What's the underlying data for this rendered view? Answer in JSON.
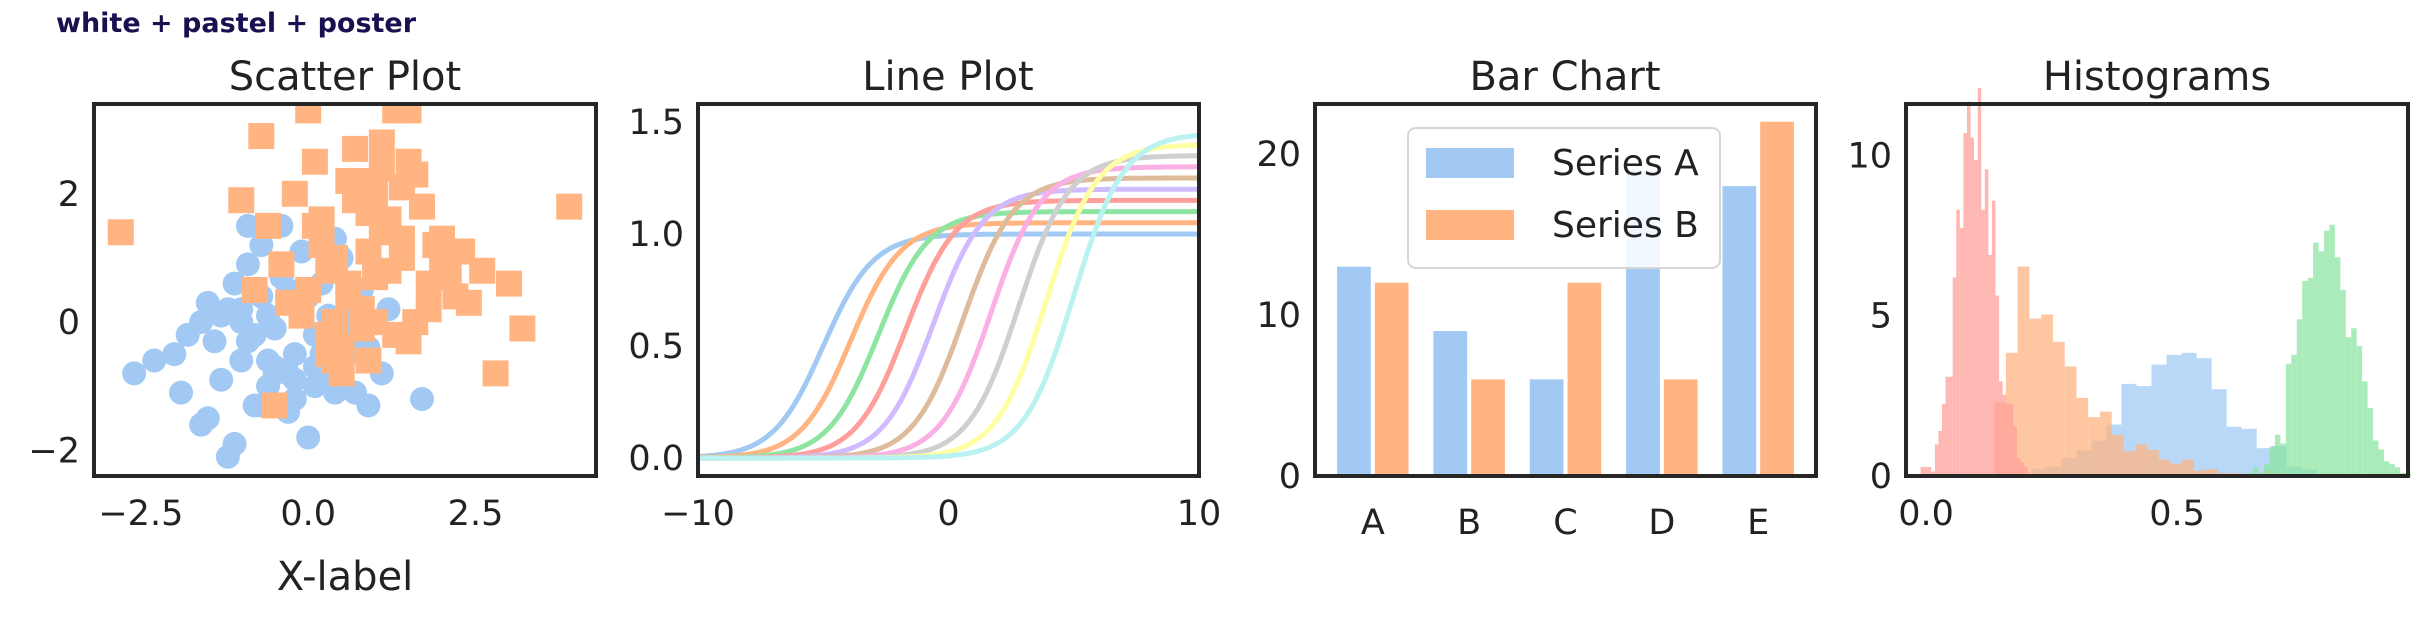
{
  "figure_title": "white + pastel + poster",
  "colors": {
    "blue": "#a1c9f4",
    "orange": "#ffb482",
    "green": "#8de5a1",
    "red": "#ff9f9b",
    "purple": "#d0bbff",
    "brown": "#debb9b",
    "pink": "#fab0e4",
    "gray": "#cfcfcf",
    "yellow": "#fffea3",
    "cyan": "#b9f2f0"
  },
  "chart_data": [
    {
      "type": "scatter",
      "title": "Scatter Plot",
      "xlabel": "X-label",
      "ylabel": "",
      "xlim": [
        -3.2,
        4.3
      ],
      "ylim": [
        -2.4,
        3.4
      ],
      "xticks": [
        "-2.5",
        "0.0",
        "2.5"
      ],
      "xtick_values": [
        -2.5,
        0,
        2.5
      ],
      "yticks": [
        "-2",
        "0",
        "2"
      ],
      "ytick_values": [
        -2,
        0,
        2
      ],
      "series": [
        {
          "marker": "circle",
          "color": "blue",
          "x": [
            -0.9,
            -1.2,
            -0.5,
            -0.3,
            0.1,
            0.4,
            0.8,
            -1.5,
            -1.8,
            -0.7,
            0.2,
            -0.2,
            -1.0,
            0.6,
            0.9,
            -0.4,
            -1.3,
            0.0,
            -0.6,
            0.3,
            1.0,
            -2.0,
            -2.6,
            -1.6,
            -1.1,
            -0.8,
            0.5,
            -0.1,
            0.7,
            1.2,
            -1.4,
            -0.9,
            0.1,
            -0.3,
            -0.7,
            0.4,
            1.7,
            -0.5,
            0.2,
            -1.2,
            -1.9,
            -0.6,
            0.8,
            0.3,
            -0.2,
            -1.0,
            -1.6,
            -0.4,
            1.1,
            0.0,
            -0.8,
            0.6,
            -2.3,
            -1.5,
            -0.9,
            0.1,
            -0.3,
            0.9,
            -0.6,
            -1.1,
            0.4,
            -0.1,
            -1.3,
            0.7,
            -0.5,
            0.2,
            -0.7,
            -1.0,
            0.5,
            -0.2
          ],
          "y": [
            -0.3,
            0.2,
            -0.8,
            0.5,
            -1.0,
            0.0,
            -0.5,
            -1.5,
            -0.2,
            1.2,
            0.6,
            -1.2,
            -0.6,
            0.3,
            -1.3,
            1.5,
            -0.9,
            -1.8,
            0.1,
            -0.4,
            0.8,
            -0.5,
            -0.8,
            0.0,
            -1.9,
            -0.2,
            1.0,
            0.3,
            -1.1,
            0.2,
            -0.3,
            0.9,
            -0.7,
            -1.4,
            0.4,
            1.3,
            -1.2,
            -0.1,
            -0.5,
            -2.1,
            -1.1,
            -0.6,
            0.5,
            0.1,
            -0.9,
            0.0,
            -1.6,
            0.7,
            -0.8,
            0.4,
            -1.3,
            -0.3,
            -0.6,
            0.3,
            1.5,
            -0.2,
            -0.8,
            -0.4,
            -1.0,
            0.6,
            -1.1,
            1.1,
            0.1,
            0.2,
            -0.7,
            -0.9,
            -1.3,
            0.2,
            -0.1,
            -0.5
          ]
        },
        {
          "marker": "square",
          "color": "orange",
          "x": [
            0.0,
            0.4,
            0.8,
            1.2,
            1.5,
            0.2,
            0.6,
            1.0,
            1.4,
            1.8,
            0.3,
            0.7,
            1.1,
            -0.3,
            0.9,
            1.6,
            2.0,
            0.5,
            1.3,
            -0.6,
            2.2,
            0.1,
            0.8,
            1.7,
            1.0,
            0.4,
            -0.2,
            1.9,
            0.6,
            1.2,
            2.4,
            0.0,
            1.5,
            0.9,
            2.8,
            -0.4,
            0.3,
            1.1,
            3.2,
            -0.8,
            1.4,
            0.7,
            2.1,
            -2.8,
            3.9,
            1.5,
            0.2,
            2.6,
            -0.5,
            1.0,
            1.8,
            0.5,
            0.9,
            2.3,
            -1.0,
            0.6,
            1.3,
            -0.7,
            3.0,
            0.1,
            0.8,
            1.6,
            2.0,
            0.3,
            1.1,
            0.4,
            -0.1,
            1.4
          ],
          "y": [
            0.5,
            1.0,
            0.2,
            0.8,
            -0.3,
            1.6,
            2.2,
            0.0,
            1.3,
            0.6,
            -0.5,
            1.9,
            2.8,
            0.3,
            1.1,
            2.3,
            0.9,
            -0.8,
            3.3,
            1.5,
            0.4,
            2.5,
            -0.1,
            1.8,
            0.7,
            0.0,
            2.0,
            1.2,
            0.6,
            1.6,
            0.3,
            3.3,
            2.5,
            -0.6,
            -0.8,
            0.9,
            -0.2,
            1.4,
            -0.1,
            0.5,
            1.0,
            2.7,
            0.7,
            1.4,
            1.8,
            3.3,
            1.2,
            0.8,
            -1.3,
            2.0,
            0.2,
            -0.4,
            1.7,
            1.1,
            1.9,
            0.4,
            -0.2,
            2.9,
            0.6,
            1.5,
            2.2,
            0.0,
            1.3,
            0.8,
            2.4,
            -0.6,
            0.1,
            2.1
          ]
        }
      ]
    },
    {
      "type": "line",
      "title": "Line Plot",
      "xlabel": "",
      "ylabel": "",
      "xlim": [
        -10,
        10
      ],
      "ylim": [
        -0.08,
        1.58
      ],
      "xticks": [
        "-10",
        "0",
        "10"
      ],
      "xtick_values": [
        -10,
        0,
        10
      ],
      "yticks": [
        "0.0",
        "0.5",
        "1.0",
        "1.5"
      ],
      "ytick_values": [
        0,
        0.5,
        1,
        1.5
      ],
      "function": "y = (1 + 0.05*i) / (1 + exp(-(x - x0_i)))",
      "series": [
        {
          "color": "blue",
          "x0": -5.0,
          "amplitude": 1.0
        },
        {
          "color": "orange",
          "x0": -3.9,
          "amplitude": 1.05
        },
        {
          "color": "green",
          "x0": -2.8,
          "amplitude": 1.1
        },
        {
          "color": "red",
          "x0": -1.7,
          "amplitude": 1.15
        },
        {
          "color": "purple",
          "x0": -0.6,
          "amplitude": 1.2
        },
        {
          "color": "brown",
          "x0": 0.6,
          "amplitude": 1.25
        },
        {
          "color": "pink",
          "x0": 1.7,
          "amplitude": 1.3
        },
        {
          "color": "gray",
          "x0": 2.8,
          "amplitude": 1.35
        },
        {
          "color": "yellow",
          "x0": 3.9,
          "amplitude": 1.4
        },
        {
          "color": "cyan",
          "x0": 5.0,
          "amplitude": 1.45
        }
      ]
    },
    {
      "type": "bar",
      "title": "Bar Chart",
      "xlabel": "",
      "ylabel": "",
      "categories": [
        "A",
        "B",
        "C",
        "D",
        "E"
      ],
      "ylim": [
        0,
        23.1
      ],
      "yticks": [
        "0",
        "10",
        "20"
      ],
      "ytick_values": [
        0,
        10,
        20
      ],
      "legend": "top-center",
      "series": [
        {
          "name": "Series A",
          "color": "blue",
          "values": [
            13,
            9,
            6,
            19,
            18
          ]
        },
        {
          "name": "Series B",
          "color": "orange",
          "values": [
            12,
            6,
            12,
            6,
            22
          ]
        }
      ]
    },
    {
      "type": "histogram",
      "title": "Histograms",
      "xlabel": "",
      "ylabel": "",
      "xlim": [
        -0.04,
        0.96
      ],
      "ylim": [
        0,
        11.6
      ],
      "xticks": [
        "0.0",
        "0.5"
      ],
      "xtick_values": [
        0,
        0.5
      ],
      "yticks": [
        "0",
        "5",
        "10"
      ],
      "ytick_values": [
        0,
        5,
        10
      ],
      "series": [
        {
          "color": "red",
          "distribution": "approx normal",
          "mean": 0.1,
          "sd": 0.035
        },
        {
          "color": "orange",
          "distribution": "approx skewed",
          "mean": 0.27,
          "sd": 0.12
        },
        {
          "color": "blue",
          "distribution": "approx normal",
          "mean": 0.5,
          "sd": 0.11
        },
        {
          "color": "green",
          "distribution": "approx normal",
          "mean": 0.8,
          "sd": 0.05
        }
      ]
    }
  ]
}
